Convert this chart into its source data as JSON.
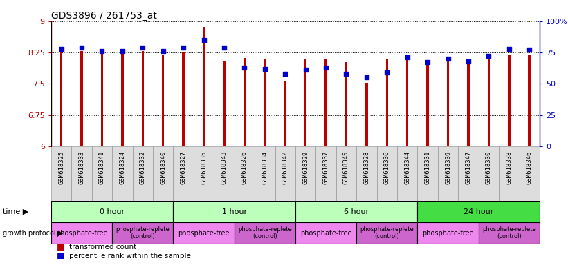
{
  "title": "GDS3896 / 261753_at",
  "samples": [
    "GSM618325",
    "GSM618333",
    "GSM618341",
    "GSM618324",
    "GSM618332",
    "GSM618340",
    "GSM618327",
    "GSM618335",
    "GSM618343",
    "GSM618326",
    "GSM618334",
    "GSM618342",
    "GSM618329",
    "GSM618337",
    "GSM618345",
    "GSM618328",
    "GSM618336",
    "GSM618344",
    "GSM618331",
    "GSM618339",
    "GSM618347",
    "GSM618330",
    "GSM618338",
    "GSM618346"
  ],
  "bar_values": [
    8.28,
    8.29,
    8.22,
    8.22,
    8.29,
    8.19,
    8.27,
    8.87,
    8.05,
    8.11,
    8.09,
    7.55,
    8.08,
    8.08,
    8.02,
    7.52,
    8.08,
    8.18,
    8.06,
    8.13,
    8.08,
    8.09,
    8.18,
    8.2
  ],
  "percentile_values": [
    78,
    79,
    76,
    76,
    79,
    76,
    79,
    85,
    79,
    63,
    62,
    58,
    61,
    63,
    58,
    55,
    59,
    71,
    67,
    70,
    68,
    72,
    78,
    77
  ],
  "bar_color": "#BB0000",
  "percentile_color": "#0000CC",
  "ylim": [
    6,
    9
  ],
  "yticks": [
    6,
    6.75,
    7.5,
    8.25,
    9
  ],
  "ytick_labels": [
    "6",
    "6.75",
    "7.5",
    "8.25",
    "9"
  ],
  "y2lim": [
    0,
    100
  ],
  "y2ticks": [
    0,
    25,
    50,
    75,
    100
  ],
  "y2tick_labels": [
    "0",
    "25",
    "50",
    "75",
    "100%"
  ],
  "time_groups": [
    {
      "label": "0 hour",
      "start": 0,
      "end": 6,
      "color": "#bbffbb"
    },
    {
      "label": "1 hour",
      "start": 6,
      "end": 12,
      "color": "#bbffbb"
    },
    {
      "label": "6 hour",
      "start": 12,
      "end": 18,
      "color": "#bbffbb"
    },
    {
      "label": "24 hour",
      "start": 18,
      "end": 24,
      "color": "#44dd44"
    }
  ],
  "protocol_groups": [
    {
      "label": "phosphate-free",
      "start": 0,
      "end": 3,
      "color": "#ee88ee",
      "fontsize": 7
    },
    {
      "label": "phosphate-replete\n(control)",
      "start": 3,
      "end": 6,
      "color": "#cc66cc",
      "fontsize": 6
    },
    {
      "label": "phosphate-free",
      "start": 6,
      "end": 9,
      "color": "#ee88ee",
      "fontsize": 7
    },
    {
      "label": "phosphate-replete\n(control)",
      "start": 9,
      "end": 12,
      "color": "#cc66cc",
      "fontsize": 6
    },
    {
      "label": "phosphate-free",
      "start": 12,
      "end": 15,
      "color": "#ee88ee",
      "fontsize": 7
    },
    {
      "label": "phosphate-replete\n(control)",
      "start": 15,
      "end": 18,
      "color": "#cc66cc",
      "fontsize": 6
    },
    {
      "label": "phosphate-free",
      "start": 18,
      "end": 21,
      "color": "#ee88ee",
      "fontsize": 7
    },
    {
      "label": "phosphate-replete\n(control)",
      "start": 21,
      "end": 24,
      "color": "#cc66cc",
      "fontsize": 6
    }
  ],
  "legend_bar_label": "transformed count",
  "legend_pct_label": "percentile rank within the sample",
  "xlabel_time": "time",
  "xlabel_protocol": "growth protocol",
  "bar_width": 0.12,
  "sample_box_color": "#dddddd",
  "bg_color": "#ffffff"
}
